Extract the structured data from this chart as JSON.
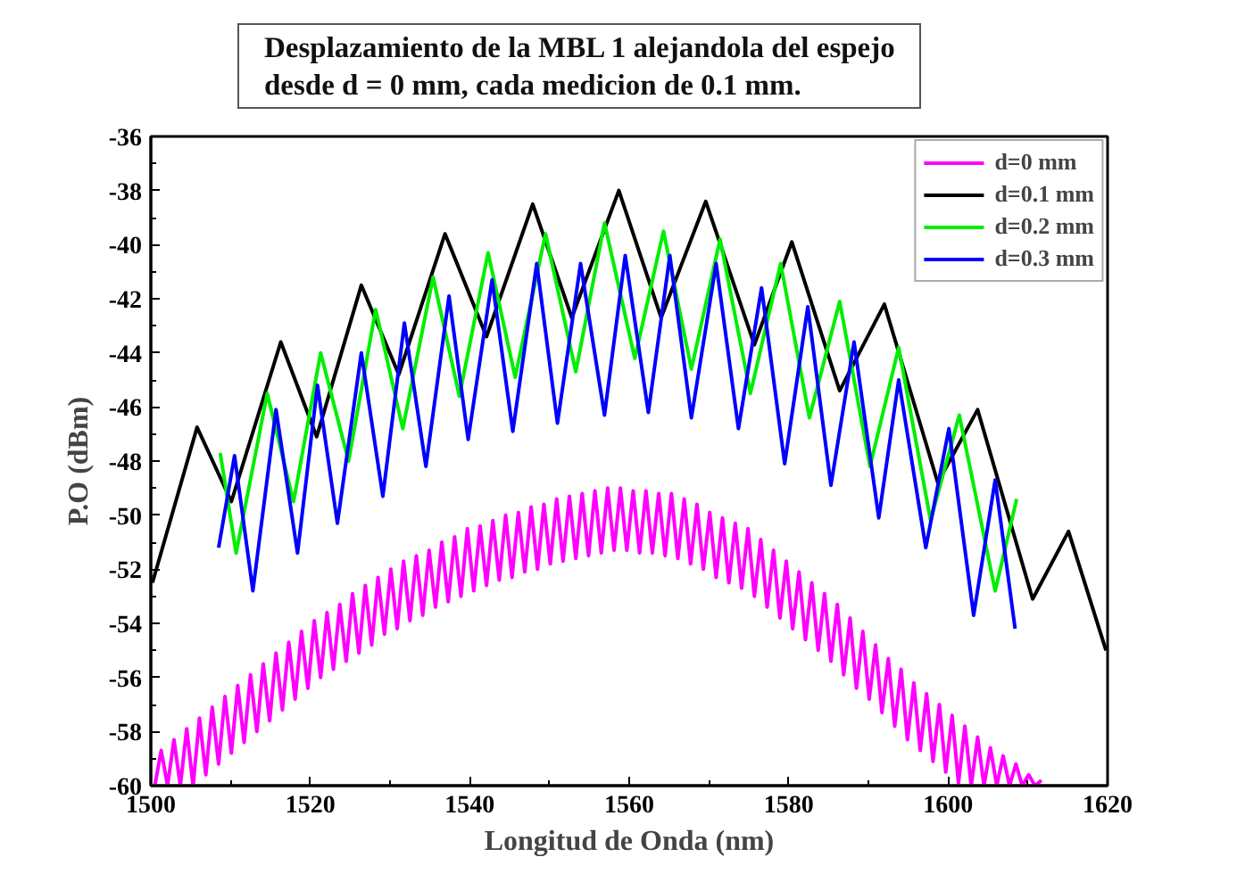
{
  "chart_data": {
    "type": "line",
    "title": "Desplazamiento de la MBL 1 alejandola del espejo\ndesde d = 0 mm, cada medicion de 0.1 mm.",
    "xlabel": "Longitud de Onda (nm)",
    "ylabel": "P.O (dBm)",
    "xlim": [
      1500,
      1620
    ],
    "xticks": [
      1500,
      1520,
      1540,
      1560,
      1580,
      1600,
      1620
    ],
    "ylim": [
      -60,
      -36
    ],
    "yticks": [
      -60,
      -58,
      -56,
      -54,
      -52,
      -50,
      -48,
      -46,
      -44,
      -42,
      -40,
      -38,
      -36
    ],
    "grid": false,
    "legend": "top right",
    "line_style": "solid",
    "series": [
      {
        "name": "d=0 mm",
        "color": "#ff00ff",
        "x": [
          1500.5,
          1501.3,
          1502.1,
          1502.9,
          1503.7,
          1504.5,
          1505.3,
          1506.1,
          1506.9,
          1507.7,
          1508.5,
          1509.3,
          1510.1,
          1510.9,
          1511.7,
          1512.5,
          1513.3,
          1514.1,
          1514.9,
          1515.7,
          1516.5,
          1517.3,
          1518.1,
          1518.9,
          1519.7,
          1520.5,
          1521.3,
          1522.1,
          1522.9,
          1523.7,
          1524.5,
          1525.3,
          1526.1,
          1526.9,
          1527.7,
          1528.5,
          1529.3,
          1530.1,
          1530.9,
          1531.7,
          1532.5,
          1533.3,
          1534.1,
          1534.9,
          1535.7,
          1536.5,
          1537.3,
          1538.1,
          1538.9,
          1539.7,
          1540.5,
          1541.3,
          1542.1,
          1542.9,
          1543.7,
          1544.5,
          1545.3,
          1546.1,
          1546.9,
          1547.7,
          1548.5,
          1549.3,
          1550.1,
          1550.9,
          1551.7,
          1552.5,
          1553.3,
          1554.1,
          1554.9,
          1555.7,
          1556.5,
          1557.3,
          1558.1,
          1558.9,
          1559.7,
          1560.5,
          1561.3,
          1562.1,
          1562.9,
          1563.7,
          1564.5,
          1565.3,
          1566.1,
          1566.9,
          1567.7,
          1568.5,
          1569.3,
          1570.1,
          1570.9,
          1571.7,
          1572.5,
          1573.3,
          1574.1,
          1574.9,
          1575.7,
          1576.5,
          1577.3,
          1578.1,
          1578.9,
          1579.7,
          1580.5,
          1581.3,
          1582.1,
          1582.9,
          1583.7,
          1584.5,
          1585.3,
          1586.1,
          1586.9,
          1587.7,
          1588.5,
          1589.3,
          1590.1,
          1590.9,
          1591.7,
          1592.5,
          1593.3,
          1594.1,
          1594.9,
          1595.7,
          1596.5,
          1597.3,
          1598.1,
          1598.9,
          1599.7,
          1600.5,
          1601.3,
          1602.1,
          1602.9,
          1603.7,
          1604.5,
          1605.3,
          1606.1,
          1606.9,
          1607.7,
          1608.5,
          1609.3,
          1610.1,
          1610.9,
          1611.7
        ],
        "values": [
          -60,
          -58.7,
          -60,
          -58.3,
          -60,
          -57.9,
          -60,
          -57.5,
          -59.6,
          -57.1,
          -59.2,
          -56.7,
          -58.8,
          -56.3,
          -58.4,
          -55.9,
          -58.0,
          -55.5,
          -57.6,
          -55.1,
          -57.2,
          -54.7,
          -56.8,
          -54.3,
          -56.4,
          -53.9,
          -56.0,
          -53.6,
          -55.7,
          -53.3,
          -55.4,
          -52.9,
          -55.1,
          -52.6,
          -54.8,
          -52.3,
          -54.4,
          -52.0,
          -54.2,
          -51.7,
          -53.9,
          -51.5,
          -53.7,
          -51.3,
          -53.4,
          -51.0,
          -53.2,
          -50.8,
          -53.0,
          -50.5,
          -52.8,
          -50.4,
          -52.6,
          -50.2,
          -52.4,
          -50.0,
          -52.3,
          -49.9,
          -52.1,
          -49.7,
          -52.0,
          -49.6,
          -51.8,
          -49.4,
          -51.7,
          -49.3,
          -51.6,
          -49.2,
          -51.5,
          -49.1,
          -51.4,
          -49.0,
          -51.3,
          -49.0,
          -51.3,
          -49.1,
          -51.4,
          -49.1,
          -51.4,
          -49.2,
          -51.5,
          -49.2,
          -51.6,
          -49.4,
          -51.8,
          -49.6,
          -52.0,
          -49.9,
          -52.3,
          -50.1,
          -52.5,
          -50.3,
          -52.7,
          -50.5,
          -53.0,
          -50.9,
          -53.4,
          -51.3,
          -53.8,
          -51.7,
          -54.2,
          -52.1,
          -54.6,
          -52.5,
          -55.0,
          -52.9,
          -55.4,
          -53.3,
          -55.9,
          -53.8,
          -56.4,
          -54.3,
          -56.8,
          -54.8,
          -57.3,
          -55.3,
          -57.8,
          -55.7,
          -58.3,
          -56.2,
          -58.7,
          -56.6,
          -59.1,
          -57.0,
          -59.5,
          -57.4,
          -59.9,
          -57.8,
          -60,
          -58.2,
          -60,
          -58.6,
          -60,
          -58.9,
          -60,
          -59.2,
          -60,
          -59.6,
          -60,
          -59.8
        ]
      },
      {
        "name": "d=0.1 mm",
        "color": "#000000",
        "x": [
          1500.2,
          1505.8,
          1510.1,
          1516.3,
          1520.8,
          1526.4,
          1531.1,
          1536.9,
          1542.1,
          1547.9,
          1552.8,
          1558.7,
          1564.0,
          1569.6,
          1575.7,
          1580.4,
          1586.4,
          1592.0,
          1598.7,
          1603.7,
          1610.6,
          1615.1,
          1619.8
        ],
        "values": [
          -52.5,
          -46.75,
          -49.5,
          -43.6,
          -47.1,
          -41.5,
          -44.8,
          -39.6,
          -43.4,
          -38.5,
          -42.7,
          -38.0,
          -42.7,
          -38.4,
          -43.7,
          -39.9,
          -45.4,
          -42.2,
          -48.8,
          -46.1,
          -53.1,
          -50.6,
          -55.0
        ]
      },
      {
        "name": "d=0.2 mm",
        "color": "#00ee00",
        "x": [
          1508.7,
          1510.7,
          1514.6,
          1517.9,
          1521.3,
          1524.8,
          1528.2,
          1531.6,
          1535.4,
          1538.7,
          1542.3,
          1545.7,
          1549.5,
          1553.3,
          1556.9,
          1560.7,
          1564.3,
          1567.8,
          1571.4,
          1575.2,
          1579.0,
          1582.6,
          1586.4,
          1590.2,
          1593.8,
          1597.8,
          1601.4,
          1605.9,
          1608.6
        ],
        "values": [
          -47.7,
          -51.4,
          -45.5,
          -49.5,
          -44.0,
          -48.0,
          -42.4,
          -46.8,
          -41.2,
          -45.6,
          -40.3,
          -44.9,
          -39.6,
          -44.7,
          -39.2,
          -44.2,
          -39.5,
          -44.6,
          -39.8,
          -45.5,
          -40.7,
          -46.4,
          -42.1,
          -48.2,
          -43.8,
          -50.2,
          -46.3,
          -52.8,
          -49.4
        ]
      },
      {
        "name": "d=0.3 mm",
        "color": "#0000ff",
        "x": [
          1508.5,
          1510.5,
          1512.8,
          1515.7,
          1518.4,
          1520.9,
          1523.4,
          1526.4,
          1529.1,
          1531.8,
          1534.5,
          1537.4,
          1539.8,
          1542.8,
          1545.4,
          1548.4,
          1551.0,
          1553.9,
          1556.9,
          1559.5,
          1562.4,
          1565.1,
          1567.8,
          1570.9,
          1573.7,
          1576.6,
          1579.5,
          1582.4,
          1585.3,
          1588.2,
          1591.3,
          1593.8,
          1597.2,
          1600.1,
          1603.2,
          1605.9,
          1608.4
        ],
        "values": [
          -51.2,
          -47.8,
          -52.8,
          -46.1,
          -51.4,
          -45.2,
          -50.3,
          -44.0,
          -49.3,
          -42.9,
          -48.2,
          -41.9,
          -47.2,
          -41.3,
          -46.9,
          -40.7,
          -46.6,
          -40.7,
          -46.3,
          -40.4,
          -46.2,
          -40.4,
          -46.4,
          -40.7,
          -46.8,
          -41.6,
          -48.1,
          -42.3,
          -48.9,
          -43.6,
          -50.1,
          -45.0,
          -51.2,
          -46.8,
          -53.7,
          -48.7,
          -54.2
        ]
      }
    ]
  }
}
